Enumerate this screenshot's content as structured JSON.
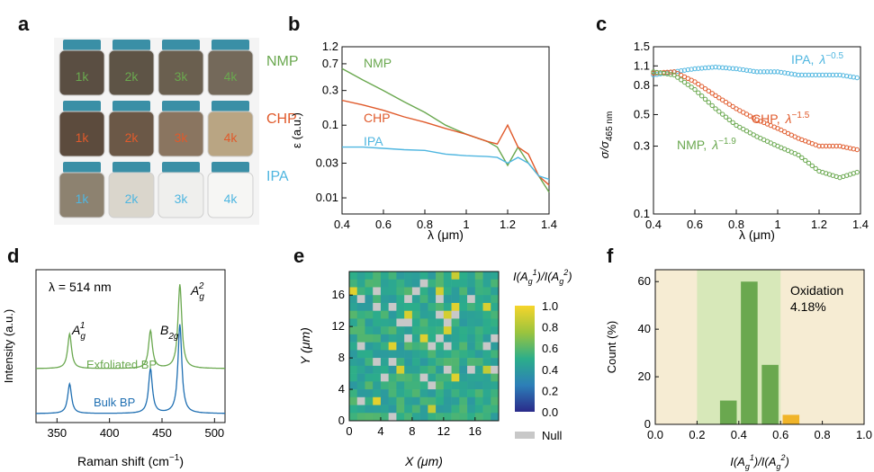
{
  "panels": {
    "a": {
      "letter": "a",
      "rows": [
        {
          "solvent": "NMP",
          "color": "#6aa84f",
          "labels": [
            "1k",
            "2k",
            "3k",
            "4k"
          ],
          "liquid": [
            "#5a4e42",
            "#5e5446",
            "#6a5f4f",
            "#74695a"
          ]
        },
        {
          "solvent": "CHP",
          "color": "#e05a2b",
          "labels": [
            "1k",
            "2k",
            "3k",
            "4k"
          ],
          "liquid": [
            "#5c4b3d",
            "#6b5847",
            "#8a7560",
            "#b9a583"
          ]
        },
        {
          "solvent": "IPA",
          "color": "#4fb6e0",
          "labels": [
            "1k",
            "2k",
            "3k",
            "4k"
          ],
          "liquid": [
            "#8d8270",
            "#dad6cc",
            "#efefed",
            "#f6f6f4"
          ]
        }
      ]
    },
    "b": {
      "letter": "b",
      "ylabel": "ε (a.u.)",
      "xlabel": "λ (μm)",
      "yticks": [
        "1.2",
        "0.7",
        "0.3",
        "0.1",
        "0.03",
        "0.01"
      ],
      "xticks": [
        "0.4",
        "0.6",
        "0.8",
        "1",
        "1.2",
        "1.4"
      ],
      "labels": {
        "nmp": "NMP",
        "chp": "CHP",
        "ipa": "IPA"
      }
    },
    "c": {
      "letter": "c",
      "ylabel_main": "σ/σ",
      "ylabel_sub": "465 nm",
      "xlabel": "λ (μm)",
      "yticks": [
        "1.5",
        "1.1",
        "0.8",
        "0.5",
        "0.3",
        "0.1"
      ],
      "xticks": [
        "0.4",
        "0.6",
        "0.8",
        "1",
        "1.2",
        "1.4"
      ],
      "labels": {
        "ipa": "IPA,",
        "ipa_exp": "λ",
        "ipa_pow": "−0.5",
        "chp": "CHP,",
        "chp_exp": "λ",
        "chp_pow": "−1.5",
        "nmp": "NMP,",
        "nmp_exp": "λ",
        "nmp_pow": "−1.9"
      }
    },
    "d": {
      "letter": "d",
      "ylabel": "Intensity (a.u.)",
      "xlabel": "Raman shift (cm",
      "xlabel_sup": "−1",
      "xlabel_end": ")",
      "xticks": [
        "350",
        "400",
        "450",
        "500"
      ],
      "wavelength": "λ = 514 nm",
      "peaks": {
        "ag1": "A",
        "ag1_sub": "g",
        "ag1_sup": "1",
        "b2g": "B",
        "b2g_sub": "2g",
        "ag2": "A",
        "ag2_sub": "g",
        "ag2_sup": "2"
      },
      "traces": {
        "exfoliated": "Exfoliated BP",
        "bulk": "Bulk BP"
      }
    },
    "e": {
      "letter": "e",
      "ylabel": "Y (μm)",
      "xlabel": "X (μm)",
      "xticks": [
        "0",
        "4",
        "8",
        "12",
        "16"
      ],
      "yticks": [
        "16",
        "12",
        "8",
        "4",
        "0"
      ],
      "colorbar_title": "I(A",
      "colorbar_ticks": [
        "1.0",
        "0.8",
        "0.6",
        "0.4",
        "0.2",
        "0.0"
      ],
      "null_label": "Null"
    },
    "f": {
      "letter": "f",
      "ylabel": "Count (%)",
      "xlabel": "I(A",
      "yticks": [
        "60",
        "40",
        "20",
        "0"
      ],
      "xticks": [
        "0.0",
        "0.2",
        "0.4",
        "0.6",
        "0.8",
        "1.0"
      ],
      "annotation_title": "Oxidation",
      "annotation_value": "4.18%"
    }
  },
  "chart_data": [
    {
      "type": "line",
      "panel": "b",
      "xlabel": "λ (μm)",
      "ylabel": "ε (a.u.)",
      "xlim": [
        0.4,
        1.4
      ],
      "ylim": [
        0.006,
        1.2
      ],
      "yscale": "log",
      "series": [
        {
          "name": "NMP",
          "color": "#6aa84f",
          "x": [
            0.4,
            0.5,
            0.6,
            0.7,
            0.8,
            0.9,
            1.0,
            1.1,
            1.15,
            1.2,
            1.25,
            1.3,
            1.35,
            1.4
          ],
          "y": [
            0.6,
            0.42,
            0.3,
            0.21,
            0.15,
            0.1,
            0.075,
            0.06,
            0.05,
            0.028,
            0.05,
            0.03,
            0.02,
            0.012
          ]
        },
        {
          "name": "CHP",
          "color": "#e05a2b",
          "x": [
            0.4,
            0.5,
            0.6,
            0.7,
            0.8,
            0.9,
            1.0,
            1.1,
            1.15,
            1.2,
            1.25,
            1.3,
            1.35,
            1.4
          ],
          "y": [
            0.22,
            0.19,
            0.16,
            0.13,
            0.11,
            0.09,
            0.075,
            0.06,
            0.055,
            0.1,
            0.05,
            0.04,
            0.02,
            0.015
          ]
        },
        {
          "name": "IPA",
          "color": "#4fb6e0",
          "x": [
            0.4,
            0.5,
            0.6,
            0.7,
            0.8,
            0.9,
            1.0,
            1.1,
            1.15,
            1.2,
            1.25,
            1.3,
            1.35,
            1.4
          ],
          "y": [
            0.05,
            0.05,
            0.048,
            0.046,
            0.045,
            0.04,
            0.038,
            0.037,
            0.036,
            0.03,
            0.036,
            0.03,
            0.02,
            0.018
          ]
        }
      ]
    },
    {
      "type": "scatter",
      "panel": "c",
      "xlabel": "λ (μm)",
      "ylabel": "σ/σ 465 nm",
      "xlim": [
        0.4,
        1.4
      ],
      "ylim": [
        0.1,
        1.5
      ],
      "yscale": "log",
      "series": [
        {
          "name": "IPA",
          "color": "#4fb6e0",
          "x": [
            0.4,
            0.5,
            0.6,
            0.7,
            0.8,
            0.9,
            1.0,
            1.1,
            1.2,
            1.3,
            1.4
          ],
          "y": [
            0.95,
            1.0,
            1.05,
            1.08,
            1.05,
            1.0,
            1.0,
            0.95,
            0.95,
            0.95,
            0.9
          ]
        },
        {
          "name": "CHP",
          "color": "#e05a2b",
          "x": [
            0.4,
            0.5,
            0.6,
            0.7,
            0.8,
            0.9,
            1.0,
            1.1,
            1.2,
            1.3,
            1.4
          ],
          "y": [
            0.98,
            1.0,
            0.85,
            0.68,
            0.55,
            0.46,
            0.4,
            0.34,
            0.3,
            0.3,
            0.28
          ]
        },
        {
          "name": "NMP",
          "color": "#6aa84f",
          "x": [
            0.4,
            0.5,
            0.6,
            0.7,
            0.8,
            0.9,
            1.0,
            1.1,
            1.2,
            1.3,
            1.4
          ],
          "y": [
            1.0,
            0.95,
            0.75,
            0.55,
            0.42,
            0.35,
            0.3,
            0.26,
            0.2,
            0.18,
            0.2
          ]
        }
      ]
    },
    {
      "type": "line",
      "panel": "d",
      "xlabel": "Raman shift (cm−1)",
      "ylabel": "Intensity (a.u.)",
      "xlim": [
        330,
        510
      ],
      "series": [
        {
          "name": "Exfoliated BP",
          "color": "#6aa84f",
          "peaks": [
            {
              "x": 362,
              "h": 0.35
            },
            {
              "x": 439,
              "h": 0.38
            },
            {
              "x": 467,
              "h": 0.85
            }
          ]
        },
        {
          "name": "Bulk BP",
          "color": "#1f6fb2",
          "peaks": [
            {
              "x": 362,
              "h": 0.3
            },
            {
              "x": 439,
              "h": 0.45
            },
            {
              "x": 467,
              "h": 0.9
            }
          ]
        }
      ]
    },
    {
      "type": "heatmap",
      "panel": "e",
      "xlabel": "X (μm)",
      "ylabel": "Y (μm)",
      "xlim": [
        0,
        19
      ],
      "ylim": [
        0,
        19
      ],
      "grid": [
        19,
        19
      ],
      "colorbar_range": [
        0.0,
        1.0
      ]
    },
    {
      "type": "bar",
      "panel": "f",
      "xlabel": "I(Ag1)/I(Ag2)",
      "ylabel": "Count (%)",
      "xlim": [
        0.0,
        1.0
      ],
      "ylim": [
        0,
        65
      ],
      "bins": [
        {
          "center": 0.35,
          "value": 10,
          "color": "#6aa84f"
        },
        {
          "center": 0.45,
          "value": 60,
          "color": "#6aa84f"
        },
        {
          "center": 0.55,
          "value": 25,
          "color": "#6aa84f"
        },
        {
          "center": 0.65,
          "value": 4,
          "color": "#f0b429"
        }
      ],
      "highlight_range": [
        0.2,
        0.6
      ]
    }
  ]
}
